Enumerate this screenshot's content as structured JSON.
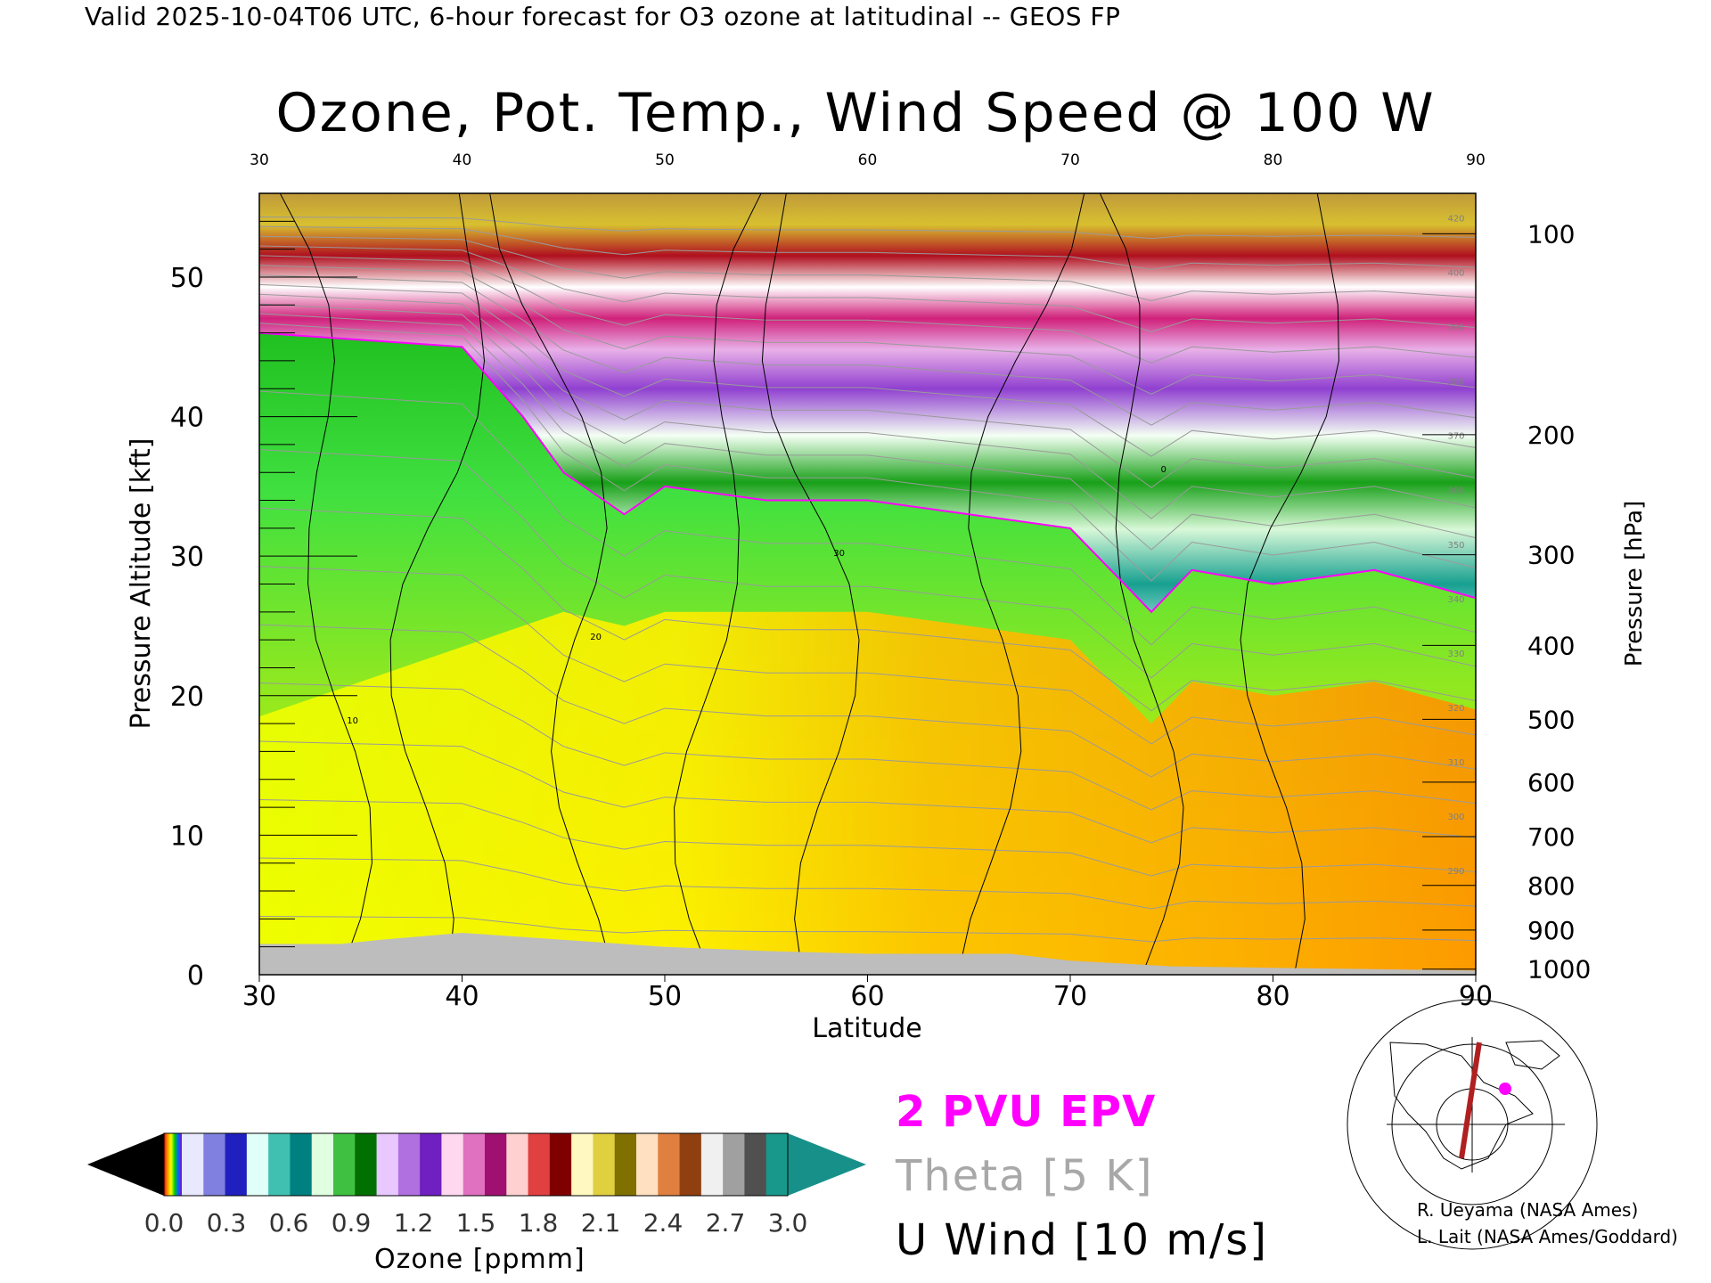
{
  "header": "Valid 2025-10-04T06 UTC, 6-hour forecast for O3 ozone at latitudinal -- GEOS FP",
  "chart_data": {
    "type": "heatmap",
    "title": "Ozone, Pot. Temp., Wind Speed @ 100 W",
    "xlabel": "Latitude",
    "ylabel": "Pressure Altitude [kft]",
    "y2label": "Pressure [hPa]",
    "xlim": [
      30,
      90
    ],
    "ylim": [
      0,
      56
    ],
    "x_ticks": [
      30,
      40,
      50,
      60,
      70,
      80,
      90
    ],
    "top_ticks": [
      30,
      40,
      50,
      60,
      70,
      80,
      90
    ],
    "y_ticks": [
      0,
      10,
      20,
      30,
      40,
      50
    ],
    "pressure_ticks": [
      {
        "hpa": 100,
        "kft": 53.1
      },
      {
        "hpa": 200,
        "kft": 38.7
      },
      {
        "hpa": 300,
        "kft": 30.1
      },
      {
        "hpa": 400,
        "kft": 23.6
      },
      {
        "hpa": 500,
        "kft": 18.3
      },
      {
        "hpa": 600,
        "kft": 13.8
      },
      {
        "hpa": 700,
        "kft": 9.9
      },
      {
        "hpa": 800,
        "kft": 6.4
      },
      {
        "hpa": 900,
        "kft": 3.2
      },
      {
        "hpa": 1000,
        "kft": 0.4
      }
    ],
    "tropopause_kft": [
      {
        "lat": 30,
        "kft": 46
      },
      {
        "lat": 40,
        "kft": 45
      },
      {
        "lat": 43,
        "kft": 40
      },
      {
        "lat": 45,
        "kft": 36
      },
      {
        "lat": 48,
        "kft": 33
      },
      {
        "lat": 50,
        "kft": 35
      },
      {
        "lat": 55,
        "kft": 34
      },
      {
        "lat": 60,
        "kft": 34
      },
      {
        "lat": 65,
        "kft": 33
      },
      {
        "lat": 70,
        "kft": 32
      },
      {
        "lat": 72,
        "kft": 29
      },
      {
        "lat": 74,
        "kft": 26
      },
      {
        "lat": 76,
        "kft": 29
      },
      {
        "lat": 80,
        "kft": 28
      },
      {
        "lat": 85,
        "kft": 29
      },
      {
        "lat": 90,
        "kft": 27
      }
    ],
    "surface_kft": [
      {
        "lat": 30,
        "kft": 2.2
      },
      {
        "lat": 34,
        "kft": 2.2
      },
      {
        "lat": 36,
        "kft": 2.5
      },
      {
        "lat": 40,
        "kft": 3.0
      },
      {
        "lat": 44,
        "kft": 2.6
      },
      {
        "lat": 50,
        "kft": 2.0
      },
      {
        "lat": 55,
        "kft": 1.7
      },
      {
        "lat": 60,
        "kft": 1.5
      },
      {
        "lat": 67,
        "kft": 1.5
      },
      {
        "lat": 70,
        "kft": 1.0
      },
      {
        "lat": 75,
        "kft": 0.6
      },
      {
        "lat": 80,
        "kft": 0.5
      },
      {
        "lat": 90,
        "kft": 0.3
      }
    ],
    "theta_labels": [
      "420",
      "400",
      "390",
      "380",
      "370",
      "360",
      "350",
      "340",
      "330",
      "320",
      "310",
      "300",
      "290"
    ],
    "wind_labels": [
      "10",
      "20",
      "30",
      "0"
    ],
    "colorbar": {
      "label": "Ozone [ppmm]",
      "ticks": [
        "0.0",
        "0.3",
        "0.6",
        "0.9",
        "1.2",
        "1.5",
        "1.8",
        "2.1",
        "2.4",
        "2.7",
        "3.0"
      ],
      "range": [
        0,
        3.0
      ]
    },
    "legend": {
      "epv": "2 PVU EPV",
      "theta": "Theta [5 K]",
      "uwind": "U Wind [10 m/s]",
      "colors": {
        "epv": "#ff00ff",
        "theta": "#a8a8a8",
        "uwind": "#000000"
      }
    }
  },
  "credits": [
    "R. Ueyama (NASA Ames)",
    "L. Lait (NASA Ames/Goddard)"
  ]
}
